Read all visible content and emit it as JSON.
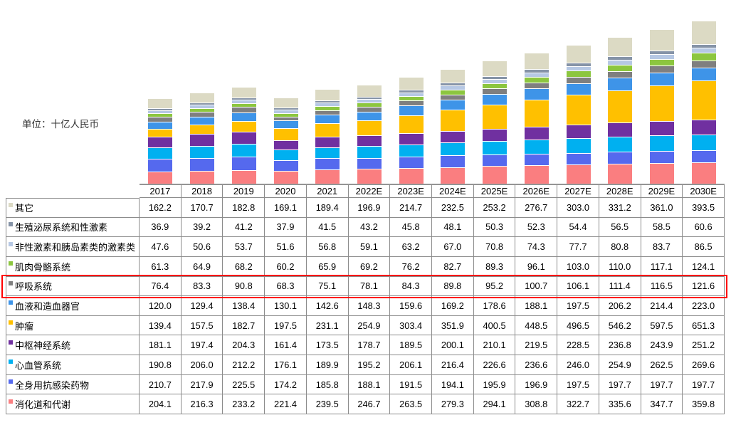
{
  "unit_label": "单位：十亿人民币",
  "highlight_row": {
    "label": "呼吸系统",
    "border_color": "#ff0000"
  },
  "chart_data": {
    "type": "bar",
    "subtype": "stacked",
    "title": "",
    "unit": "十亿人民币",
    "legend_position": "table-left-column",
    "grid": false,
    "y_axis_visible": false,
    "ylim_implied": [
      0,
      2800
    ],
    "categories": [
      "2017",
      "2018",
      "2019",
      "2020",
      "2021",
      "2022E",
      "2023E",
      "2024E",
      "2025E",
      "2026E",
      "2027E",
      "2028E",
      "2029E",
      "2030E"
    ],
    "stack_order": "listed top-of-stack first; table rows use the same order",
    "series": [
      {
        "name": "其它",
        "color": "#dcdac4",
        "values": [
          162.2,
          170.7,
          182.8,
          169.1,
          189.4,
          196.9,
          214.7,
          232.5,
          253.2,
          276.7,
          303.0,
          331.2,
          361.0,
          393.5
        ]
      },
      {
        "name": "生殖泌尿系统和性激素",
        "color": "#8593a7",
        "values": [
          36.9,
          39.2,
          41.2,
          37.9,
          41.5,
          43.2,
          45.8,
          48.1,
          50.3,
          52.3,
          54.4,
          56.5,
          58.5,
          60.6
        ]
      },
      {
        "name": "非性激素和胰岛素类的激素类",
        "color": "#b6c8e4",
        "values": [
          47.6,
          50.6,
          53.7,
          51.6,
          56.8,
          59.1,
          63.2,
          67.0,
          70.8,
          74.3,
          77.7,
          80.8,
          83.7,
          86.5
        ]
      },
      {
        "name": "肌肉骨骼系统",
        "color": "#8cc63f",
        "values": [
          61.3,
          64.9,
          68.2,
          60.2,
          65.9,
          69.2,
          76.2,
          82.7,
          89.3,
          96.1,
          103.0,
          110.0,
          117.1,
          124.1
        ]
      },
      {
        "name": "呼吸系统",
        "color": "#7f7f7f",
        "values": [
          76.4,
          83.3,
          90.8,
          68.3,
          75.1,
          78.1,
          84.3,
          89.8,
          95.2,
          100.7,
          106.1,
          111.4,
          116.5,
          121.6
        ]
      },
      {
        "name": "血液和造血器官",
        "color": "#3e94e8",
        "values": [
          120.0,
          129.4,
          138.4,
          130.1,
          142.6,
          148.3,
          159.6,
          169.2,
          178.6,
          188.1,
          197.5,
          206.2,
          214.4,
          223.0
        ]
      },
      {
        "name": "肿瘤",
        "color": "#ffc000",
        "values": [
          139.4,
          157.5,
          182.7,
          197.5,
          231.1,
          254.9,
          303.4,
          351.9,
          400.5,
          448.5,
          496.5,
          546.2,
          597.5,
          651.3
        ]
      },
      {
        "name": "中枢神经系统",
        "color": "#7030a0",
        "values": [
          181.1,
          197.4,
          204.3,
          161.4,
          173.5,
          178.7,
          189.5,
          200.1,
          210.1,
          219.5,
          228.5,
          236.8,
          243.9,
          251.2
        ]
      },
      {
        "name": "心血管系统",
        "color": "#00b0f0",
        "values": [
          190.8,
          206.0,
          212.2,
          176.1,
          189.9,
          195.2,
          206.1,
          216.4,
          226.6,
          236.6,
          246.0,
          254.9,
          262.5,
          269.6
        ]
      },
      {
        "name": "全身用抗感染药物",
        "color": "#5569ee",
        "values": [
          210.7,
          217.9,
          225.5,
          174.2,
          185.8,
          188.1,
          191.5,
          194.1,
          195.9,
          196.9,
          197.5,
          197.7,
          197.7,
          197.7
        ]
      },
      {
        "name": "消化道和代谢",
        "color": "#fa7e80",
        "values": [
          204.1,
          216.3,
          233.2,
          221.4,
          239.5,
          246.7,
          263.5,
          279.3,
          294.1,
          308.8,
          322.7,
          335.6,
          347.7,
          359.8
        ]
      }
    ]
  }
}
